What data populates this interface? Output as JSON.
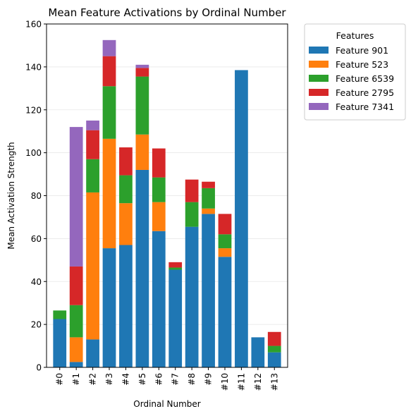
{
  "chart_data": {
    "type": "bar",
    "stacked": true,
    "title": "Mean Feature Activations by Ordinal Number",
    "xlabel": "Ordinal Number",
    "ylabel": "Mean Activation Strength",
    "ylim": [
      0,
      160
    ],
    "yticks": [
      0,
      20,
      40,
      60,
      80,
      100,
      120,
      140,
      160
    ],
    "grid": "horizontal",
    "legend_title": "Features",
    "legend_position": "outside-right",
    "categories": [
      "#0",
      "#1",
      "#2",
      "#3",
      "#4",
      "#5",
      "#6",
      "#7",
      "#8",
      "#9",
      "#10",
      "#11",
      "#12",
      "#13"
    ],
    "series": [
      {
        "name": "Feature 901",
        "color": "#1f77b4",
        "values": [
          22.5,
          2.5,
          13,
          55.5,
          57,
          92,
          63.5,
          45.5,
          65.5,
          71.5,
          51.5,
          138.5,
          14,
          7
        ]
      },
      {
        "name": "Feature 523",
        "color": "#ff7f0e",
        "values": [
          0,
          11.5,
          68.5,
          51,
          19.5,
          16.5,
          13.5,
          0,
          0,
          2.5,
          4,
          0,
          0,
          0
        ]
      },
      {
        "name": "Feature 6539",
        "color": "#2ca02c",
        "values": [
          4,
          15,
          15.5,
          24.5,
          13,
          27,
          11.5,
          1,
          11.5,
          9.5,
          6.5,
          0,
          0,
          3
        ]
      },
      {
        "name": "Feature 2795",
        "color": "#d62728",
        "values": [
          0,
          18,
          13.5,
          14,
          13,
          4,
          13.5,
          2.5,
          10.5,
          3,
          9.5,
          0,
          0,
          6.5
        ]
      },
      {
        "name": "Feature 7341",
        "color": "#9467bd",
        "values": [
          0,
          65,
          4.5,
          7.5,
          0,
          1.5,
          0,
          0,
          0,
          0,
          0,
          0,
          0,
          0
        ]
      }
    ]
  }
}
